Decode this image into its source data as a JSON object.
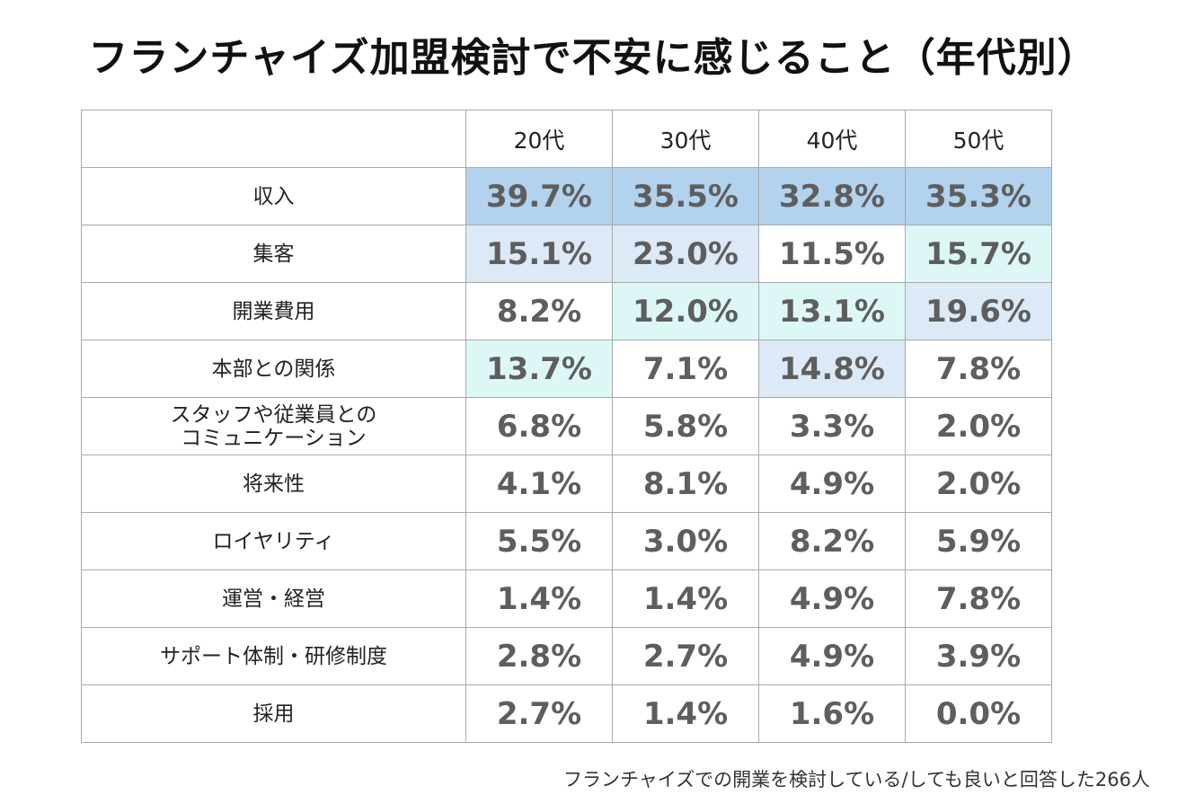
{
  "title": "フランチャイズ加盟検討で不安に感じること（年代別）",
  "footnote": "フランチャイズでの開業を検討している/しても良いと回答した266人",
  "colors": {
    "high": "#b2d2ee",
    "mid": "#dce9f6",
    "low": "#ddf7f7",
    "none": "#ffffff",
    "value_text": "#5e5e5e",
    "border": "#a9a9a9"
  },
  "chart_data": {
    "type": "table",
    "title": "フランチャイズ加盟検討で不安に感じること（年代別）",
    "columns": [
      "20代",
      "30代",
      "40代",
      "50代"
    ],
    "rows": [
      {
        "label": "収入",
        "values": [
          "39.7%",
          "35.5%",
          "32.8%",
          "35.3%"
        ],
        "levels": [
          "high",
          "high",
          "high",
          "high"
        ]
      },
      {
        "label": "集客",
        "values": [
          "15.1%",
          "23.0%",
          "11.5%",
          "15.7%"
        ],
        "levels": [
          "mid",
          "mid",
          "none",
          "low"
        ]
      },
      {
        "label": "開業費用",
        "values": [
          "8.2%",
          "12.0%",
          "13.1%",
          "19.6%"
        ],
        "levels": [
          "none",
          "low",
          "low",
          "mid"
        ]
      },
      {
        "label": "本部との関係",
        "values": [
          "13.7%",
          "7.1%",
          "14.8%",
          "7.8%"
        ],
        "levels": [
          "low",
          "none",
          "mid",
          "none"
        ]
      },
      {
        "label": "スタッフや従業員との\nコミュニケーション",
        "values": [
          "6.8%",
          "5.8%",
          "3.3%",
          "2.0%"
        ],
        "levels": [
          "none",
          "none",
          "none",
          "none"
        ]
      },
      {
        "label": "将来性",
        "values": [
          "4.1%",
          "8.1%",
          "4.9%",
          "2.0%"
        ],
        "levels": [
          "none",
          "none",
          "none",
          "none"
        ]
      },
      {
        "label": "ロイヤリティ",
        "values": [
          "5.5%",
          "3.0%",
          "8.2%",
          "5.9%"
        ],
        "levels": [
          "none",
          "none",
          "none",
          "none"
        ]
      },
      {
        "label": "運営・経営",
        "values": [
          "1.4%",
          "1.4%",
          "4.9%",
          "7.8%"
        ],
        "levels": [
          "none",
          "none",
          "none",
          "none"
        ]
      },
      {
        "label": "サポート体制・研修制度",
        "values": [
          "2.8%",
          "2.7%",
          "4.9%",
          "3.9%"
        ],
        "levels": [
          "none",
          "none",
          "none",
          "none"
        ]
      },
      {
        "label": "採用",
        "values": [
          "2.7%",
          "1.4%",
          "1.6%",
          "0.0%"
        ],
        "levels": [
          "none",
          "none",
          "none",
          "none"
        ]
      }
    ]
  }
}
